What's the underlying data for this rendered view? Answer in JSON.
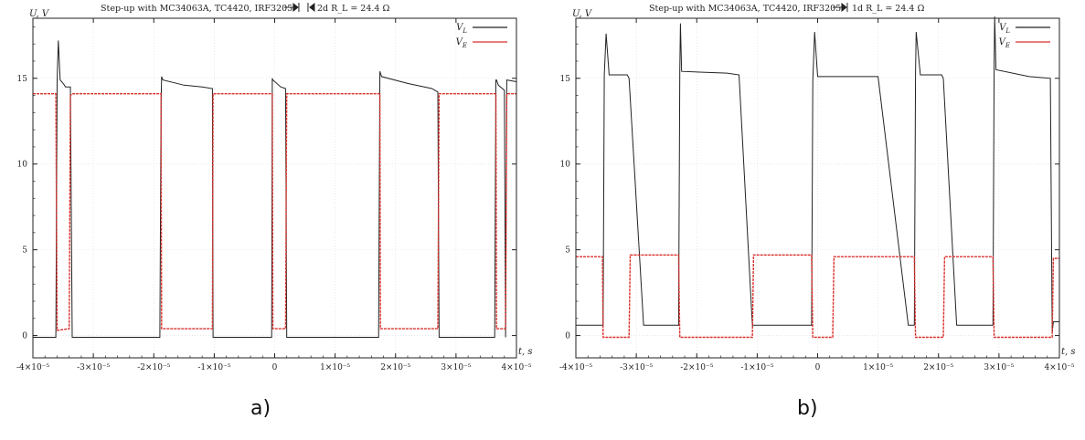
{
  "chart_data": [
    {
      "type": "line",
      "title": "Step-up with MC34063A, TC4420, IRF3205.",
      "annotation": "2d R_L = 24.4 Ω",
      "annotation_arrows": "left",
      "ylabel": "U, V",
      "xlabel": "t, s",
      "xlim": [
        -4e-05,
        4e-05
      ],
      "ylim": [
        -1.3,
        18.5
      ],
      "x_ticks": [
        "-4×10⁻⁵",
        "-3×10⁻⁵",
        "-2×10⁻⁵",
        "-1×10⁻⁵",
        "0",
        "1×10⁻⁵",
        "2×10⁻⁵",
        "3×10⁻⁵",
        "4×10⁻⁵"
      ],
      "x_tick_values": [
        -4e-05,
        -3e-05,
        -2e-05,
        -1e-05,
        0,
        1e-05,
        2e-05,
        3e-05,
        4e-05
      ],
      "y_ticks": [
        "0",
        "5",
        "10",
        "15"
      ],
      "y_tick_values": [
        0,
        5,
        10,
        15
      ],
      "grid": true,
      "legend": "top-right",
      "legend_entries": [
        "V_L",
        "V_E"
      ],
      "series": [
        {
          "name": "V_L",
          "color": "#222222",
          "x": [
            -4e-05,
            -3.62e-05,
            -3.6e-05,
            -3.58e-05,
            -3.55e-05,
            -3.5e-05,
            -3.46e-05,
            -3.38e-05,
            -3.35e-05,
            -3.3e-05,
            -1.9e-05,
            -1.88e-05,
            -1.87e-05,
            -1.85e-05,
            -1.5e-05,
            -1.2e-05,
            -1.03e-05,
            -1.02e-05,
            -1e-05,
            -2e-06,
            -5e-07,
            -4e-07,
            -3e-07,
            1e-06,
            1.8e-06,
            2e-06,
            2.5e-06,
            1.6e-05,
            1.72e-05,
            1.74e-05,
            1.75e-05,
            1.77e-05,
            2.2e-05,
            2.6e-05,
            2.7e-05,
            2.72e-05,
            2.75e-05,
            3.6e-05,
            3.64e-05,
            3.66e-05,
            3.67e-05,
            3.7e-05,
            3.8e-05,
            3.82e-05,
            3.84e-05,
            4e-05
          ],
          "y": [
            -0.1,
            -0.1,
            14.9,
            17.2,
            14.9,
            14.7,
            14.5,
            14.5,
            -0.1,
            -0.1,
            -0.1,
            13.5,
            15.1,
            14.9,
            14.6,
            14.5,
            14.4,
            -0.1,
            -0.1,
            -0.1,
            -0.1,
            15.0,
            14.9,
            14.5,
            14.4,
            -0.1,
            -0.1,
            -0.1,
            -0.1,
            15.4,
            15.3,
            15.1,
            14.7,
            14.4,
            14.2,
            -0.1,
            -0.1,
            -0.1,
            -0.1,
            14.9,
            14.9,
            14.6,
            14.3,
            -0.1,
            14.9,
            14.8
          ]
        },
        {
          "name": "V_E",
          "color": "#d9302c",
          "x": [
            -4e-05,
            -3.62e-05,
            -3.6e-05,
            -3.4e-05,
            -3.38e-05,
            -3.35e-05,
            -1.88e-05,
            -1.87e-05,
            -1.2e-05,
            -1.03e-05,
            -1.02e-05,
            -4e-07,
            -3e-07,
            1.8e-06,
            2e-06,
            1.74e-05,
            1.75e-05,
            2.7e-05,
            2.72e-05,
            3.66e-05,
            3.67e-05,
            3.82e-05,
            3.84e-05,
            4e-05
          ],
          "y": [
            14.1,
            14.1,
            0.3,
            0.4,
            14.0,
            14.1,
            14.1,
            0.4,
            0.4,
            0.4,
            14.1,
            14.1,
            0.4,
            0.4,
            14.1,
            14.1,
            0.4,
            0.4,
            14.1,
            14.1,
            0.4,
            0.4,
            14.1,
            14.1
          ]
        }
      ]
    },
    {
      "type": "line",
      "title": "Step-up with MC34063A, TC4420, IRF3205.",
      "annotation": "1d R_L = 24.4 Ω",
      "annotation_arrows": "right",
      "ylabel": "U, V",
      "xlabel": "t, s",
      "xlim": [
        -4e-05,
        4e-05
      ],
      "ylim": [
        -1.3,
        18.5
      ],
      "x_ticks": [
        "-4×10⁻⁵",
        "-3×10⁻⁵",
        "-2×10⁻⁵",
        "-1×10⁻⁵",
        "0",
        "1×10⁻⁵",
        "2×10⁻⁵",
        "3×10⁻⁵",
        "4×10⁻⁵"
      ],
      "x_tick_values": [
        -4e-05,
        -3e-05,
        -2e-05,
        -1e-05,
        0,
        1e-05,
        2e-05,
        3e-05,
        4e-05
      ],
      "y_ticks": [
        "0",
        "5",
        "10",
        "15"
      ],
      "y_tick_values": [
        0,
        5,
        10,
        15
      ],
      "grid": true,
      "legend": "top-right",
      "legend_entries": [
        "V_L",
        "V_E"
      ],
      "series": [
        {
          "name": "V_L",
          "color": "#222222",
          "x": [
            -4e-05,
            -3.55e-05,
            -3.53e-05,
            -3.5e-05,
            -3.45e-05,
            -3.15e-05,
            -3.12e-05,
            -2.88e-05,
            -2.4e-05,
            -2.3e-05,
            -2.28e-05,
            -2.27e-05,
            -2.25e-05,
            -1.5e-05,
            -1.3e-05,
            -1.08e-05,
            -9e-06,
            -5e-06,
            -2e-06,
            -1e-06,
            -8e-07,
            -5e-07,
            0.0,
            1e-05,
            1.5e-05,
            1.6e-05,
            1.62e-05,
            1.63e-05,
            1.7e-05,
            2.05e-05,
            2.08e-05,
            2.3e-05,
            2.85e-05,
            2.9e-05,
            2.92e-05,
            2.93e-05,
            2.95e-05,
            3.5e-05,
            3.85e-05,
            3.88e-05,
            3.9e-05,
            4e-05
          ],
          "y": [
            0.6,
            0.6,
            15.2,
            17.6,
            15.2,
            15.2,
            15.0,
            0.6,
            0.6,
            0.6,
            15.4,
            18.2,
            15.4,
            15.3,
            15.2,
            0.6,
            0.6,
            0.6,
            0.6,
            0.6,
            14.8,
            17.7,
            15.1,
            15.1,
            0.6,
            0.6,
            15.3,
            17.7,
            15.2,
            15.2,
            15.0,
            0.6,
            0.6,
            0.6,
            15.9,
            18.6,
            15.5,
            15.1,
            15.0,
            0.2,
            0.8,
            0.8
          ]
        },
        {
          "name": "V_E",
          "color": "#d9302c",
          "x": [
            -4e-05,
            -3.56e-05,
            -3.55e-05,
            -3.12e-05,
            -3.1e-05,
            -2.3e-05,
            -2.28e-05,
            -1.08e-05,
            -1.06e-05,
            -1e-06,
            -8e-07,
            2.5e-06,
            2.7e-06,
            1.6e-05,
            1.62e-05,
            2.08e-05,
            2.1e-05,
            2.9e-05,
            2.92e-05,
            3.88e-05,
            3.9e-05,
            4e-05
          ],
          "y": [
            4.6,
            4.6,
            -0.1,
            -0.1,
            4.7,
            4.7,
            -0.1,
            -0.1,
            4.7,
            4.7,
            -0.1,
            -0.1,
            4.6,
            4.6,
            -0.1,
            -0.1,
            4.6,
            4.6,
            -0.1,
            -0.1,
            4.5,
            4.5
          ]
        }
      ]
    }
  ],
  "captions": [
    "a)",
    "b)"
  ]
}
